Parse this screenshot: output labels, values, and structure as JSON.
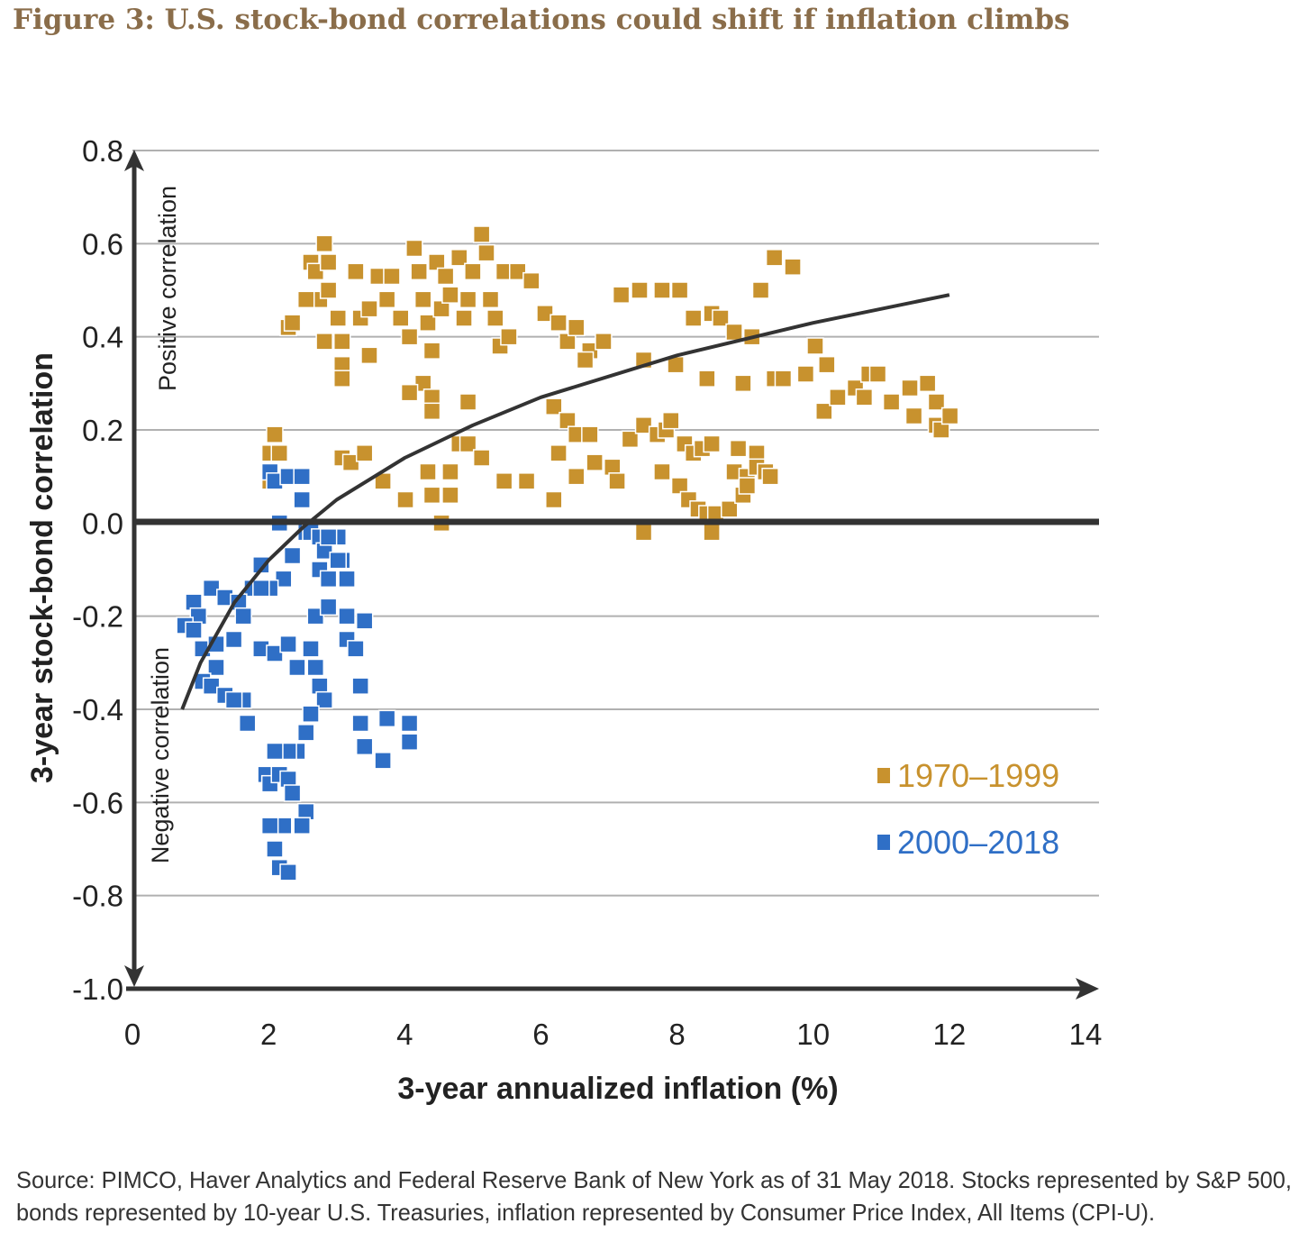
{
  "chart_data": {
    "type": "scatter",
    "title": "Figure 3: U.S. stock-bond correlations could shift if inflation climbs",
    "xlabel": "3-year annualized inflation (%)",
    "ylabel": "3-year stock-bond correlation",
    "xlim": [
      0,
      14
    ],
    "ylim": [
      -1.0,
      0.8
    ],
    "xticks": [
      "0",
      "2",
      "4",
      "6",
      "8",
      "10",
      "12",
      "14"
    ],
    "yticks": [
      "0.8",
      "0.6",
      "0.4",
      "0.2",
      "0.0",
      "-0.2",
      "-0.4",
      "-0.6",
      "-0.8",
      "-1.0"
    ],
    "grid": "horizontal",
    "legend_placement": "bottom-right",
    "annotations": {
      "positive": "Positive correlation",
      "negative": "Negative correlation"
    },
    "series": [
      {
        "name": "1970–1999",
        "color": "#c8922e",
        "marker": "square",
        "points": [
          [
            2.29,
            0.42
          ],
          [
            2.35,
            0.43
          ],
          [
            2.62,
            0.56
          ],
          [
            2.69,
            0.54
          ],
          [
            2.82,
            0.6
          ],
          [
            2.88,
            0.56
          ],
          [
            2.75,
            0.48
          ],
          [
            2.55,
            0.48
          ],
          [
            2.88,
            0.5
          ],
          [
            3.02,
            0.44
          ],
          [
            3.08,
            0.39
          ],
          [
            3.08,
            0.34
          ],
          [
            3.08,
            0.31
          ],
          [
            2.82,
            0.39
          ],
          [
            3.28,
            0.54
          ],
          [
            3.35,
            0.44
          ],
          [
            3.48,
            0.46
          ],
          [
            3.48,
            0.36
          ],
          [
            3.61,
            0.53
          ],
          [
            3.74,
            0.48
          ],
          [
            3.81,
            0.53
          ],
          [
            3.94,
            0.44
          ],
          [
            4.07,
            0.4
          ],
          [
            4.14,
            0.59
          ],
          [
            4.21,
            0.54
          ],
          [
            4.27,
            0.48
          ],
          [
            4.34,
            0.43
          ],
          [
            4.4,
            0.37
          ],
          [
            4.47,
            0.56
          ],
          [
            4.54,
            0.46
          ],
          [
            4.6,
            0.53
          ],
          [
            4.67,
            0.49
          ],
          [
            4.8,
            0.57
          ],
          [
            4.87,
            0.44
          ],
          [
            4.93,
            0.48
          ],
          [
            5.0,
            0.54
          ],
          [
            5.13,
            0.62
          ],
          [
            5.2,
            0.58
          ],
          [
            5.26,
            0.48
          ],
          [
            5.33,
            0.44
          ],
          [
            5.4,
            0.38
          ],
          [
            5.46,
            0.54
          ],
          [
            5.53,
            0.4
          ],
          [
            5.66,
            0.54
          ],
          [
            5.86,
            0.52
          ],
          [
            4.27,
            0.3
          ],
          [
            4.4,
            0.27
          ],
          [
            2.09,
            0.19
          ],
          [
            2.02,
            0.15
          ],
          [
            2.16,
            0.15
          ],
          [
            2.02,
            0.09
          ],
          [
            3.08,
            0.14
          ],
          [
            3.21,
            0.13
          ],
          [
            3.41,
            0.15
          ],
          [
            3.68,
            0.09
          ],
          [
            4.01,
            0.05
          ],
          [
            4.34,
            0.11
          ],
          [
            4.4,
            0.06
          ],
          [
            4.54,
            0.0
          ],
          [
            4.67,
            0.11
          ],
          [
            4.67,
            0.06
          ],
          [
            4.8,
            0.17
          ],
          [
            4.93,
            0.17
          ],
          [
            4.93,
            0.26
          ],
          [
            5.13,
            0.14
          ],
          [
            5.46,
            0.09
          ],
          [
            5.79,
            0.09
          ],
          [
            6.06,
            0.45
          ],
          [
            6.26,
            0.43
          ],
          [
            6.39,
            0.39
          ],
          [
            6.52,
            0.42
          ],
          [
            6.72,
            0.37
          ],
          [
            6.92,
            0.39
          ],
          [
            6.65,
            0.35
          ],
          [
            6.19,
            0.25
          ],
          [
            6.39,
            0.22
          ],
          [
            6.52,
            0.19
          ],
          [
            6.72,
            0.19
          ],
          [
            6.26,
            0.15
          ],
          [
            6.52,
            0.1
          ],
          [
            6.79,
            0.13
          ],
          [
            7.05,
            0.12
          ],
          [
            7.12,
            0.09
          ],
          [
            6.19,
            0.05
          ],
          [
            7.18,
            0.49
          ],
          [
            7.45,
            0.5
          ],
          [
            7.78,
            0.5
          ],
          [
            8.04,
            0.5
          ],
          [
            8.24,
            0.44
          ],
          [
            8.51,
            0.45
          ],
          [
            8.64,
            0.44
          ],
          [
            8.84,
            0.41
          ],
          [
            9.1,
            0.4
          ],
          [
            9.23,
            0.5
          ],
          [
            9.43,
            0.57
          ],
          [
            9.7,
            0.55
          ],
          [
            7.51,
            0.35
          ],
          [
            7.98,
            0.34
          ],
          [
            8.44,
            0.31
          ],
          [
            8.97,
            0.3
          ],
          [
            9.43,
            0.31
          ],
          [
            9.56,
            0.31
          ],
          [
            9.89,
            0.32
          ],
          [
            10.03,
            0.38
          ],
          [
            10.2,
            0.34
          ],
          [
            10.16,
            0.24
          ],
          [
            10.36,
            0.27
          ],
          [
            10.62,
            0.29
          ],
          [
            10.75,
            0.27
          ],
          [
            10.82,
            0.32
          ],
          [
            10.95,
            0.32
          ],
          [
            11.15,
            0.26
          ],
          [
            11.42,
            0.29
          ],
          [
            11.68,
            0.3
          ],
          [
            11.81,
            0.26
          ],
          [
            11.48,
            0.23
          ],
          [
            11.81,
            0.21
          ],
          [
            11.88,
            0.2
          ],
          [
            12.01,
            0.23
          ],
          [
            7.31,
            0.18
          ],
          [
            7.51,
            0.21
          ],
          [
            7.71,
            0.19
          ],
          [
            7.84,
            0.2
          ],
          [
            7.91,
            0.22
          ],
          [
            7.78,
            0.11
          ],
          [
            8.04,
            0.08
          ],
          [
            8.11,
            0.17
          ],
          [
            8.24,
            0.15
          ],
          [
            8.37,
            0.16
          ],
          [
            8.51,
            0.17
          ],
          [
            8.17,
            0.05
          ],
          [
            8.31,
            0.03
          ],
          [
            8.44,
            0.02
          ],
          [
            8.57,
            0.02
          ],
          [
            8.77,
            0.03
          ],
          [
            8.51,
            -0.02
          ],
          [
            7.51,
            -0.02
          ],
          [
            8.9,
            0.16
          ],
          [
            8.84,
            0.11
          ],
          [
            9.03,
            0.1
          ],
          [
            9.17,
            0.15
          ],
          [
            9.17,
            0.12
          ],
          [
            9.3,
            0.11
          ],
          [
            9.37,
            0.1
          ],
          [
            8.97,
            0.06
          ],
          [
            9.03,
            0.08
          ],
          [
            4.07,
            0.28
          ],
          [
            4.4,
            0.24
          ]
        ]
      },
      {
        "name": "2000–2018",
        "color": "#2f6fc6",
        "marker": "square",
        "points": [
          [
            2.02,
            0.11
          ],
          [
            2.09,
            0.09
          ],
          [
            2.29,
            0.1
          ],
          [
            2.49,
            0.1
          ],
          [
            2.49,
            0.05
          ],
          [
            2.16,
            0.0
          ],
          [
            2.55,
            -0.02
          ],
          [
            2.62,
            -0.02
          ],
          [
            2.75,
            -0.03
          ],
          [
            2.82,
            -0.06
          ],
          [
            3.02,
            -0.03
          ],
          [
            3.08,
            -0.08
          ],
          [
            3.15,
            -0.12
          ],
          [
            2.75,
            -0.1
          ],
          [
            2.88,
            -0.12
          ],
          [
            2.35,
            -0.07
          ],
          [
            2.22,
            -0.12
          ],
          [
            2.02,
            -0.14
          ],
          [
            1.89,
            -0.09
          ],
          [
            1.76,
            -0.14
          ],
          [
            1.89,
            -0.14
          ],
          [
            1.16,
            -0.14
          ],
          [
            0.9,
            -0.17
          ],
          [
            0.97,
            -0.2
          ],
          [
            1.36,
            -0.16
          ],
          [
            1.56,
            -0.17
          ],
          [
            1.63,
            -0.2
          ],
          [
            0.77,
            -0.22
          ],
          [
            0.9,
            -0.23
          ],
          [
            1.03,
            -0.27
          ],
          [
            1.23,
            -0.26
          ],
          [
            1.49,
            -0.25
          ],
          [
            1.23,
            -0.31
          ],
          [
            1.03,
            -0.34
          ],
          [
            1.16,
            -0.35
          ],
          [
            1.36,
            -0.37
          ],
          [
            1.63,
            -0.38
          ],
          [
            1.49,
            -0.38
          ],
          [
            1.69,
            -0.43
          ],
          [
            1.89,
            -0.27
          ],
          [
            2.09,
            -0.28
          ],
          [
            2.29,
            -0.26
          ],
          [
            2.42,
            -0.31
          ],
          [
            2.62,
            -0.27
          ],
          [
            2.69,
            -0.31
          ],
          [
            2.75,
            -0.35
          ],
          [
            2.82,
            -0.38
          ],
          [
            2.62,
            -0.41
          ],
          [
            2.55,
            -0.45
          ],
          [
            2.42,
            -0.49
          ],
          [
            2.29,
            -0.49
          ],
          [
            2.09,
            -0.49
          ],
          [
            1.96,
            -0.54
          ],
          [
            2.02,
            -0.56
          ],
          [
            2.16,
            -0.54
          ],
          [
            2.29,
            -0.55
          ],
          [
            2.35,
            -0.58
          ],
          [
            2.55,
            -0.62
          ],
          [
            2.49,
            -0.65
          ],
          [
            2.22,
            -0.65
          ],
          [
            2.09,
            -0.7
          ],
          [
            2.16,
            -0.74
          ],
          [
            2.29,
            -0.75
          ],
          [
            2.02,
            -0.65
          ],
          [
            3.15,
            -0.25
          ],
          [
            3.28,
            -0.27
          ],
          [
            3.35,
            -0.35
          ],
          [
            3.41,
            -0.21
          ],
          [
            3.35,
            -0.43
          ],
          [
            3.41,
            -0.48
          ],
          [
            3.74,
            -0.42
          ],
          [
            4.07,
            -0.43
          ],
          [
            4.07,
            -0.47
          ],
          [
            3.68,
            -0.51
          ],
          [
            2.69,
            -0.2
          ],
          [
            2.88,
            -0.18
          ],
          [
            3.15,
            -0.2
          ],
          [
            3.02,
            -0.08
          ],
          [
            2.88,
            -0.03
          ]
        ]
      }
    ],
    "trendline": {
      "color": "#333333",
      "points": [
        [
          0.73,
          -0.4
        ],
        [
          1,
          -0.3
        ],
        [
          1.5,
          -0.17
        ],
        [
          2,
          -0.08
        ],
        [
          2.5,
          -0.01
        ],
        [
          3,
          0.05
        ],
        [
          4,
          0.14
        ],
        [
          5,
          0.21
        ],
        [
          6,
          0.27
        ],
        [
          8,
          0.36
        ],
        [
          10,
          0.43
        ],
        [
          12,
          0.49
        ]
      ]
    }
  },
  "source": {
    "line1": "Source: PIMCO, Haver Analytics and Federal Reserve Bank of New York as of 31 May 2018. Stocks represented by S&P 500,",
    "line2": "bonds represented by 10-year U.S. Treasuries, inflation represented by Consumer Price Index, All Items (CPI-U)."
  }
}
